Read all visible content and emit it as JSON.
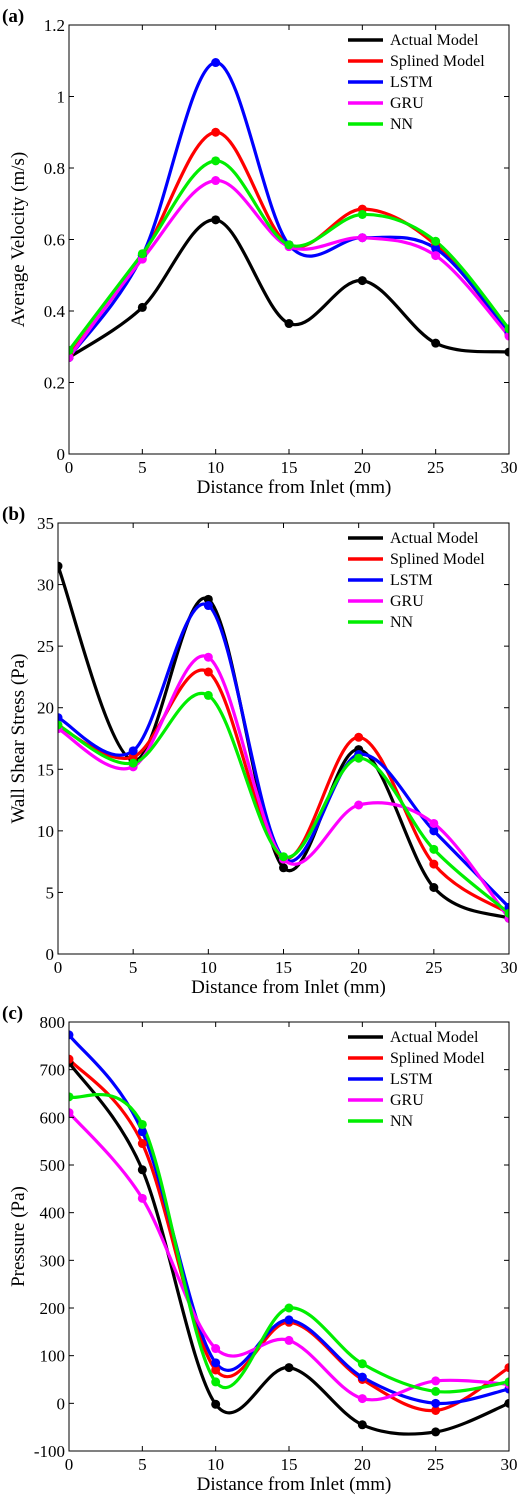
{
  "chart_data": [
    {
      "type": "line",
      "panel_label": "(a)",
      "xlabel": "Distance from Inlet (mm)",
      "ylabel": "Average Velocity (m/s)",
      "xlim": [
        0,
        30
      ],
      "ylim": [
        0,
        1.2
      ],
      "xticks": [
        "0",
        "5",
        "10",
        "15",
        "20",
        "25",
        "30"
      ],
      "yticks": [
        "0",
        "0.2",
        "0.4",
        "0.6",
        "0.8",
        "1",
        "1.2"
      ],
      "x": [
        0,
        5,
        10,
        15,
        20,
        25,
        30
      ],
      "legend_position": "top-right",
      "grid": false,
      "series": [
        {
          "name": "Actual Model",
          "color": "#000000",
          "values": [
            0.27,
            0.41,
            0.655,
            0.365,
            0.485,
            0.31,
            0.285
          ]
        },
        {
          "name": "Splined Model",
          "color": "#ff0000",
          "values": [
            0.275,
            0.555,
            0.9,
            0.585,
            0.685,
            0.585,
            0.335
          ]
        },
        {
          "name": "LSTM",
          "color": "#0000ff",
          "values": [
            0.27,
            0.555,
            1.095,
            0.585,
            0.605,
            0.575,
            0.34
          ]
        },
        {
          "name": "GRU",
          "color": "#ff00ff",
          "values": [
            0.27,
            0.545,
            0.765,
            0.58,
            0.605,
            0.555,
            0.33
          ]
        },
        {
          "name": "NN",
          "color": "#00ee00",
          "values": [
            0.29,
            0.56,
            0.82,
            0.585,
            0.67,
            0.595,
            0.35
          ]
        }
      ]
    },
    {
      "type": "line",
      "panel_label": "(b)",
      "xlabel": "Distance from Inlet (mm)",
      "ylabel": "Wall Shear Stress (Pa)",
      "xlim": [
        0,
        30
      ],
      "ylim": [
        0,
        35
      ],
      "xticks": [
        "0",
        "5",
        "10",
        "15",
        "20",
        "25",
        "30"
      ],
      "yticks": [
        "0",
        "5",
        "10",
        "15",
        "20",
        "25",
        "30",
        "35"
      ],
      "x": [
        0,
        5,
        10,
        15,
        20,
        25,
        30
      ],
      "legend_position": "top-right",
      "grid": false,
      "series": [
        {
          "name": "Actual Model",
          "color": "#000000",
          "values": [
            31.5,
            15.7,
            28.8,
            7.0,
            16.6,
            5.4,
            2.9
          ]
        },
        {
          "name": "Splined Model",
          "color": "#ff0000",
          "values": [
            18.5,
            16.0,
            22.9,
            7.8,
            17.6,
            7.3,
            3.3
          ]
        },
        {
          "name": "LSTM",
          "color": "#0000ff",
          "values": [
            19.2,
            16.5,
            28.3,
            7.8,
            16.2,
            10.0,
            3.8
          ]
        },
        {
          "name": "GRU",
          "color": "#ff00ff",
          "values": [
            18.3,
            15.2,
            24.1,
            7.7,
            12.1,
            10.6,
            2.9
          ]
        },
        {
          "name": "NN",
          "color": "#00ee00",
          "values": [
            18.6,
            15.5,
            21.0,
            7.9,
            15.9,
            8.5,
            3.3
          ]
        }
      ]
    },
    {
      "type": "line",
      "panel_label": "(c)",
      "xlabel": "Distance from Inlet (mm)",
      "ylabel": "Pressure (Pa)",
      "xlim": [
        0,
        30
      ],
      "ylim": [
        -100,
        800
      ],
      "xticks": [
        "0",
        "5",
        "10",
        "15",
        "20",
        "25",
        "30"
      ],
      "yticks": [
        "-100",
        "0",
        "100",
        "200",
        "300",
        "400",
        "500",
        "600",
        "700",
        "800"
      ],
      "x": [
        0,
        5,
        10,
        15,
        20,
        25,
        30
      ],
      "legend_position": "top-right",
      "grid": false,
      "series": [
        {
          "name": "Actual Model",
          "color": "#000000",
          "values": [
            715,
            490,
            -2,
            75,
            -45,
            -60,
            0
          ]
        },
        {
          "name": "Splined Model",
          "color": "#ff0000",
          "values": [
            722,
            545,
            70,
            170,
            50,
            -15,
            75
          ]
        },
        {
          "name": "LSTM",
          "color": "#0000ff",
          "values": [
            773,
            570,
            85,
            175,
            55,
            0,
            30
          ]
        },
        {
          "name": "GRU",
          "color": "#ff00ff",
          "values": [
            610,
            430,
            115,
            132,
            10,
            47,
            40
          ]
        },
        {
          "name": "NN",
          "color": "#00ee00",
          "values": [
            643,
            585,
            45,
            200,
            83,
            25,
            45
          ]
        }
      ]
    }
  ]
}
